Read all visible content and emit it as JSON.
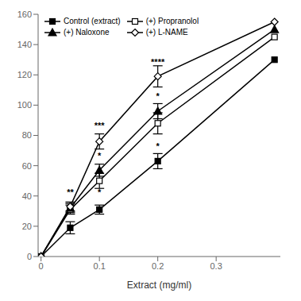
{
  "chart_data": {
    "type": "line",
    "x": [
      0,
      0.05,
      0.1,
      0.2,
      0.4
    ],
    "series": [
      {
        "name": "Control (extract)",
        "color": "#000000",
        "marker": "square",
        "values": [
          0,
          19,
          31,
          63,
          130
        ],
        "errors": [
          0,
          4,
          3,
          5,
          0
        ]
      },
      {
        "name": "(+) Propranolol",
        "color": "#000000",
        "marker": "square_open",
        "values": [
          0,
          31,
          50,
          88,
          145
        ],
        "errors": [
          0,
          3,
          5,
          7,
          0
        ]
      },
      {
        "name": "(+) Naloxone",
        "color": "#000000",
        "marker": "triangle",
        "values": [
          0,
          32,
          57,
          96,
          150
        ],
        "errors": [
          0,
          3,
          4,
          5,
          0
        ]
      },
      {
        "name": "(+) L-NAME",
        "color": "#000000",
        "marker": "diamond_open",
        "values": [
          0,
          33,
          76,
          119,
          155
        ],
        "errors": [
          0,
          3,
          5,
          7,
          0
        ]
      }
    ],
    "annotations": [
      {
        "x": 0.05,
        "y": 38,
        "text": "**"
      },
      {
        "x": 0.1,
        "y": 82,
        "text": "***"
      },
      {
        "x": 0.1,
        "y": 62,
        "text": "*"
      },
      {
        "x": 0.1,
        "y": 38,
        "text": "*"
      },
      {
        "x": 0.2,
        "y": 124,
        "text": "****"
      },
      {
        "x": 0.2,
        "y": 101,
        "text": "*"
      },
      {
        "x": 0.2,
        "y": 68,
        "text": "*"
      }
    ],
    "xlabel": "Extract (mg/ml)",
    "xlim": [
      -0.005,
      0.41
    ],
    "ylim": [
      0,
      160
    ],
    "xticks": [
      0,
      0.1,
      0.2,
      0.3
    ],
    "yticks": [
      0,
      20,
      40,
      60,
      80,
      100,
      120,
      140,
      160
    ],
    "legend": "upper left",
    "grid": false
  }
}
